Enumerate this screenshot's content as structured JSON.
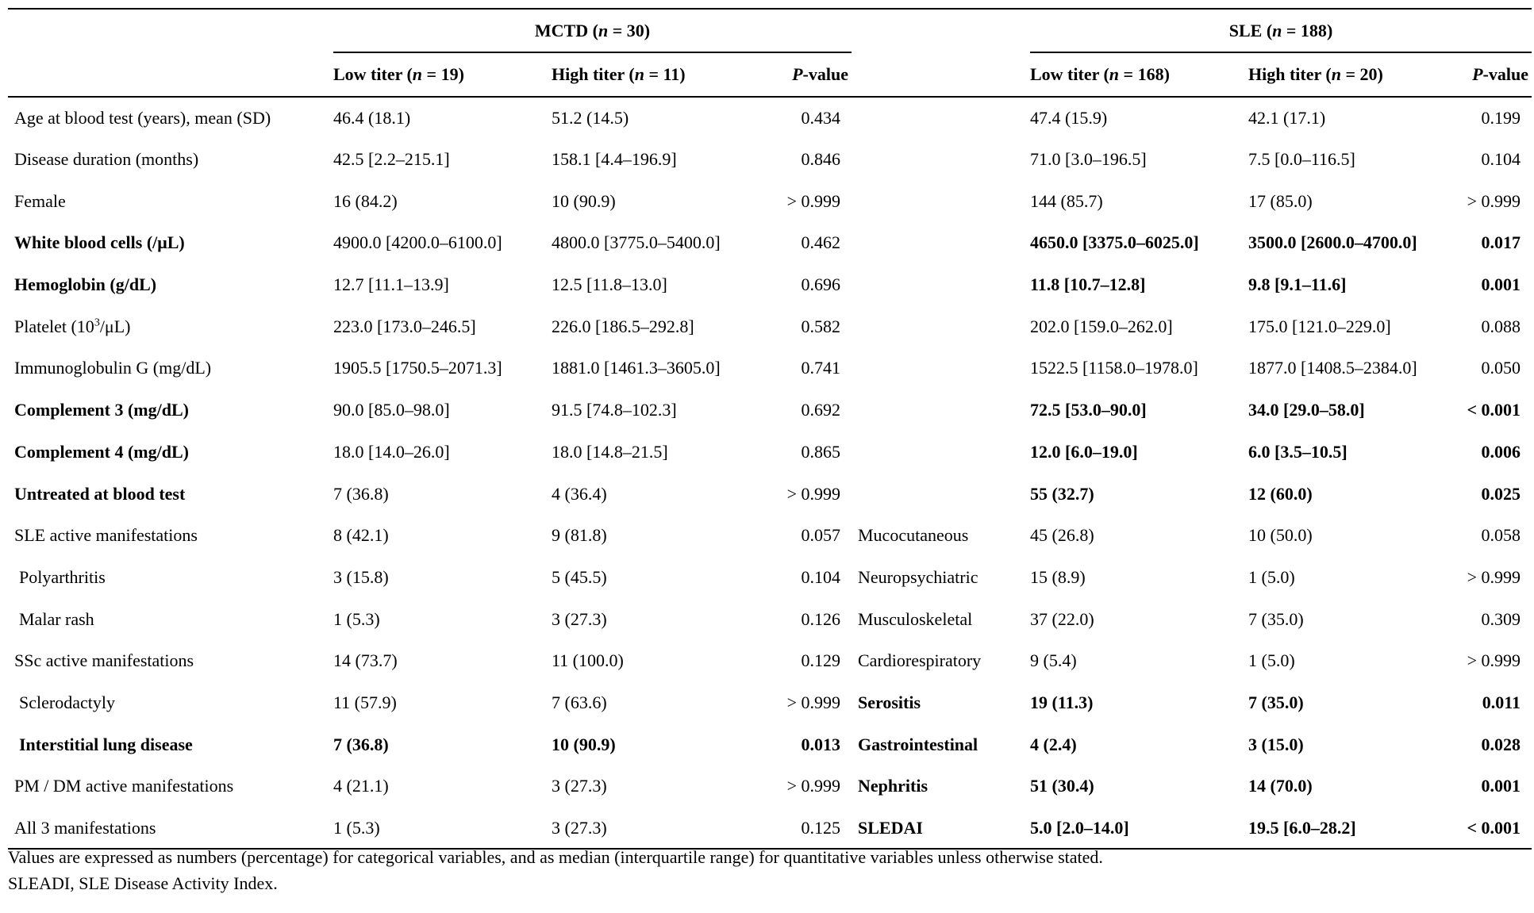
{
  "groups": {
    "mctd": {
      "name": "MCTD",
      "n_label": "n",
      "n_value": " = 30"
    },
    "sle": {
      "name": "SLE",
      "n_label": "n",
      "n_value": " = 188"
    }
  },
  "subheaders": {
    "mctd_low": {
      "label": "Low titer (",
      "n_label": "n",
      "n_value": " = 19)"
    },
    "mctd_high": {
      "label": "High titer (",
      "n_label": "n",
      "n_value": " = 11)"
    },
    "mctd_p": {
      "p": "P",
      "rest": "-value"
    },
    "sle_low": {
      "label": "Low titer (",
      "n_label": "n",
      "n_value": " = 168)"
    },
    "sle_high": {
      "label": "High titer (",
      "n_label": "n",
      "n_value": " = 20)"
    },
    "sle_p": {
      "p": "P",
      "rest": "-value"
    }
  },
  "rows": [
    {
      "var": "Age at blood test (years), mean (SD)",
      "m_low": "46.4 (18.1)",
      "m_high": "51.2 (14.5)",
      "m_p": "0.434",
      "s_var": "",
      "s_low": "47.4 (15.9)",
      "s_high": "42.1 (17.1)",
      "s_p": "0.199"
    },
    {
      "var": "Disease duration (months)",
      "m_low": "42.5 [2.2–215.1]",
      "m_high": "158.1 [4.4–196.9]",
      "m_p": "0.846",
      "s_var": "",
      "s_low": "71.0 [3.0–196.5]",
      "s_high": "7.5 [0.0–116.5]",
      "s_p": "0.104"
    },
    {
      "var": "Female",
      "m_low": "16 (84.2)",
      "m_high": "10 (90.9)",
      "m_p": "> 0.999",
      "s_var": "",
      "s_low": "144 (85.7)",
      "s_high": "17 (85.0)",
      "s_p": "> 0.999"
    },
    {
      "var": "White blood cells (/μL)",
      "m_low": "4900.0 [4200.0–6100.0]",
      "m_high": "4800.0 [3775.0–5400.0]",
      "m_p": "0.462",
      "s_var": "",
      "s_low": "4650.0 [3375.0–6025.0]",
      "s_high": "3500.0 [2600.0–4700.0]",
      "s_p": "0.017"
    },
    {
      "var": "Hemoglobin (g/dL)",
      "m_low": "12.7 [11.1–13.9]",
      "m_high": "12.5 [11.8–13.0]",
      "m_p": "0.696",
      "s_var": "",
      "s_low": "11.8 [10.7–12.8]",
      "s_high": "9.8 [9.1–11.6]",
      "s_p": "0.001"
    },
    {
      "var_pre": "Platelet (10",
      "var_sup": "3",
      "var_post": "/μL)",
      "m_low": "223.0 [173.0–246.5]",
      "m_high": "226.0 [186.5–292.8]",
      "m_p": "0.582",
      "s_var": "",
      "s_low": "202.0 [159.0–262.0]",
      "s_high": "175.0 [121.0–229.0]",
      "s_p": "0.088"
    },
    {
      "var": "Immunoglobulin G (mg/dL)",
      "m_low": "1905.5 [1750.5–2071.3]",
      "m_high": "1881.0 [1461.3–3605.0]",
      "m_p": "0.741",
      "s_var": "",
      "s_low": "1522.5 [1158.0–1978.0]",
      "s_high": "1877.0 [1408.5–2384.0]",
      "s_p": "0.050"
    },
    {
      "var": "Complement 3 (mg/dL)",
      "m_low": "90.0 [85.0–98.0]",
      "m_high": "91.5 [74.8–102.3]",
      "m_p": "0.692",
      "s_var": "",
      "s_low": "72.5 [53.0–90.0]",
      "s_high": "34.0 [29.0–58.0]",
      "s_p": "< 0.001"
    },
    {
      "var": "Complement 4 (mg/dL)",
      "m_low": "18.0 [14.0–26.0]",
      "m_high": "18.0 [14.8–21.5]",
      "m_p": "0.865",
      "s_var": "",
      "s_low": "12.0 [6.0–19.0]",
      "s_high": "6.0 [3.5–10.5]",
      "s_p": "0.006"
    },
    {
      "var": "Untreated at blood test",
      "m_low": "7 (36.8)",
      "m_high": "4 (36.4)",
      "m_p": "> 0.999",
      "s_var": "",
      "s_low": "55 (32.7)",
      "s_high": "12 (60.0)",
      "s_p": "0.025"
    },
    {
      "var": "SLE active manifestations",
      "m_low": "8 (42.1)",
      "m_high": "9 (81.8)",
      "m_p": "0.057",
      "s_var": "Mucocutaneous",
      "s_low": "45 (26.8)",
      "s_high": "10 (50.0)",
      "s_p": "0.058"
    },
    {
      "var": "Polyarthritis",
      "m_low": "3 (15.8)",
      "m_high": "5 (45.5)",
      "m_p": "0.104",
      "s_var": "Neuropsychiatric",
      "s_low": "15 (8.9)",
      "s_high": "1 (5.0)",
      "s_p": "> 0.999"
    },
    {
      "var": "Malar rash",
      "m_low": "1 (5.3)",
      "m_high": "3 (27.3)",
      "m_p": "0.126",
      "s_var": "Musculoskeletal",
      "s_low": "37 (22.0)",
      "s_high": "7 (35.0)",
      "s_p": "0.309"
    },
    {
      "var": "SSc active manifestations",
      "m_low": "14 (73.7)",
      "m_high": "11 (100.0)",
      "m_p": "0.129",
      "s_var": "Cardiorespiratory",
      "s_low": "9 (5.4)",
      "s_high": "1 (5.0)",
      "s_p": "> 0.999"
    },
    {
      "var": "Sclerodactyly",
      "m_low": "11 (57.9)",
      "m_high": "7 (63.6)",
      "m_p": "> 0.999",
      "s_var": "Serositis",
      "s_low": "19 (11.3)",
      "s_high": "7 (35.0)",
      "s_p": "0.011"
    },
    {
      "var": "Interstitial lung disease",
      "m_low": "7 (36.8)",
      "m_high": "10 (90.9)",
      "m_p": "0.013",
      "s_var": "Gastrointestinal",
      "s_low": "4 (2.4)",
      "s_high": "3 (15.0)",
      "s_p": "0.028"
    },
    {
      "var": "PM / DM active manifestations",
      "m_low": "4 (21.1)",
      "m_high": "3 (27.3)",
      "m_p": "> 0.999",
      "s_var": "Nephritis",
      "s_low": "51 (30.4)",
      "s_high": "14 (70.0)",
      "s_p": "0.001"
    },
    {
      "var": "All 3 manifestations",
      "m_low": "1 (5.3)",
      "m_high": "3 (27.3)",
      "m_p": "0.125",
      "s_var": "SLEDAI",
      "s_low": "5.0 [2.0–14.0]",
      "s_high": "19.5 [6.0–28.2]",
      "s_p": "< 0.001"
    }
  ],
  "footnote": {
    "line1": "Values are expressed as numbers (percentage) for categorical variables, and as median (interquartile range) for quantitative variables unless otherwise stated.",
    "line2": "SLEADI, SLE Disease Activity Index."
  }
}
